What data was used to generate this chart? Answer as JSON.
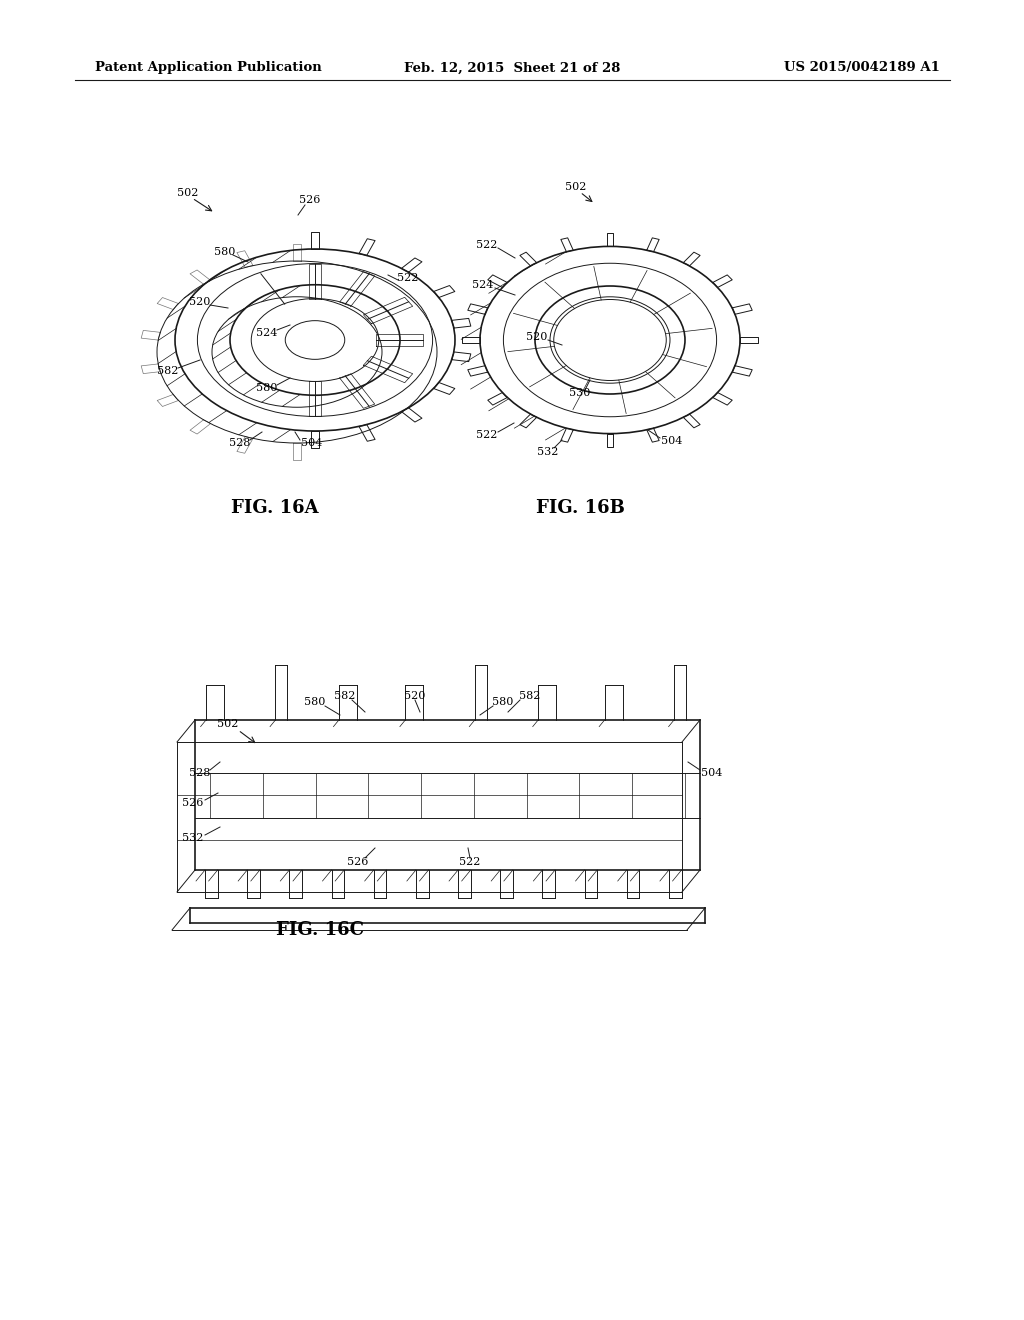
{
  "background_color": "#ffffff",
  "header_left": "Patent Application Publication",
  "header_center": "Feb. 12, 2015  Sheet 21 of 28",
  "header_right": "US 2015/0042189 A1",
  "fig16a_caption": "FIG. 16A",
  "fig16b_caption": "FIG. 16B",
  "fig16c_caption": "FIG. 16C",
  "line_color": "#1a1a1a",
  "text_color": "#000000",
  "header_fontsize": 9.5,
  "label_fontsize": 8.0,
  "caption_fontsize": 13
}
